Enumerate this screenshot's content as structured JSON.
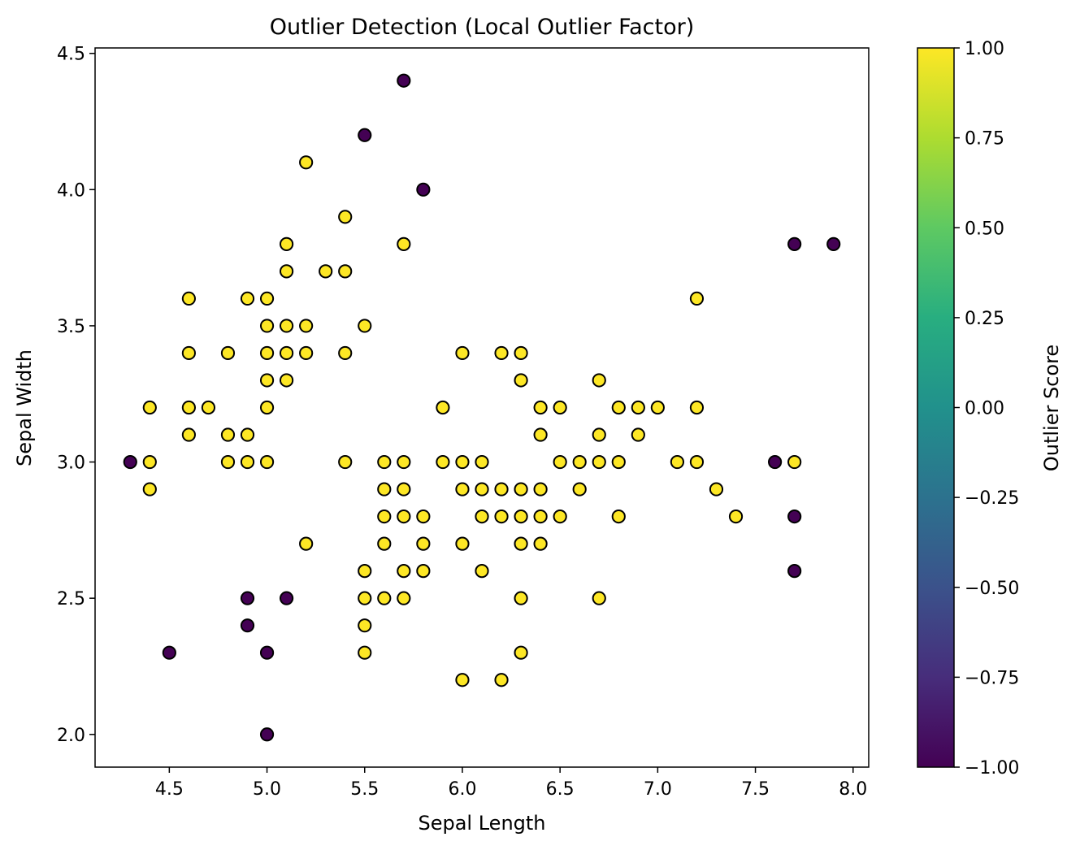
{
  "chart_data": {
    "type": "scatter",
    "title": "Outlier Detection (Local Outlier Factor)",
    "xlabel": "Sepal Length",
    "ylabel": "Sepal Width",
    "xlim": [
      4.12,
      8.08
    ],
    "ylim": [
      1.88,
      4.52
    ],
    "xticks": [
      "4.5",
      "5.0",
      "5.5",
      "6.0",
      "6.5",
      "7.0",
      "7.5",
      "8.0"
    ],
    "yticks": [
      "2.0",
      "2.5",
      "3.0",
      "3.5",
      "4.0",
      "4.5"
    ],
    "grid": false,
    "colorbar": {
      "label": "Outlier Score",
      "range": [
        -1.0,
        1.0
      ],
      "colormap": "viridis",
      "ticks": [
        "−1.00",
        "−0.75",
        "−0.50",
        "−0.25",
        "0.00",
        "0.25",
        "0.50",
        "0.75",
        "1.00"
      ]
    },
    "colors": {
      "outlier": "#440154",
      "inlier": "#fde725",
      "edge": "#000000"
    },
    "series": [
      {
        "score": -1,
        "points": [
          [
            5.7,
            4.4
          ],
          [
            5.5,
            4.2
          ],
          [
            5.8,
            4.0
          ],
          [
            7.7,
            3.8
          ],
          [
            7.9,
            3.8
          ],
          [
            4.3,
            3.0
          ],
          [
            7.6,
            3.0
          ],
          [
            7.7,
            2.8
          ],
          [
            7.7,
            2.6
          ],
          [
            4.9,
            2.5
          ],
          [
            5.1,
            2.5
          ],
          [
            4.9,
            2.4
          ],
          [
            4.5,
            2.3
          ],
          [
            5.0,
            2.3
          ],
          [
            5.0,
            2.0
          ]
        ]
      },
      {
        "score": 1,
        "points": [
          [
            5.2,
            4.1
          ],
          [
            5.4,
            3.9
          ],
          [
            5.1,
            3.8
          ],
          [
            5.7,
            3.8
          ],
          [
            5.1,
            3.7
          ],
          [
            5.3,
            3.7
          ],
          [
            5.4,
            3.7
          ],
          [
            4.6,
            3.6
          ],
          [
            4.9,
            3.6
          ],
          [
            5.0,
            3.6
          ],
          [
            7.2,
            3.6
          ],
          [
            5.0,
            3.5
          ],
          [
            5.1,
            3.5
          ],
          [
            5.2,
            3.5
          ],
          [
            5.5,
            3.5
          ],
          [
            4.6,
            3.4
          ],
          [
            4.8,
            3.4
          ],
          [
            5.0,
            3.4
          ],
          [
            5.1,
            3.4
          ],
          [
            5.2,
            3.4
          ],
          [
            5.4,
            3.4
          ],
          [
            6.0,
            3.4
          ],
          [
            6.2,
            3.4
          ],
          [
            6.3,
            3.4
          ],
          [
            5.0,
            3.3
          ],
          [
            5.1,
            3.3
          ],
          [
            6.3,
            3.3
          ],
          [
            6.7,
            3.3
          ],
          [
            4.4,
            3.2
          ],
          [
            4.6,
            3.2
          ],
          [
            4.7,
            3.2
          ],
          [
            5.0,
            3.2
          ],
          [
            5.9,
            3.2
          ],
          [
            6.4,
            3.2
          ],
          [
            6.5,
            3.2
          ],
          [
            6.8,
            3.2
          ],
          [
            6.9,
            3.2
          ],
          [
            7.0,
            3.2
          ],
          [
            7.2,
            3.2
          ],
          [
            4.6,
            3.1
          ],
          [
            4.8,
            3.1
          ],
          [
            4.9,
            3.1
          ],
          [
            6.4,
            3.1
          ],
          [
            6.7,
            3.1
          ],
          [
            6.9,
            3.1
          ],
          [
            4.4,
            3.0
          ],
          [
            4.8,
            3.0
          ],
          [
            4.9,
            3.0
          ],
          [
            5.0,
            3.0
          ],
          [
            5.4,
            3.0
          ],
          [
            5.6,
            3.0
          ],
          [
            5.7,
            3.0
          ],
          [
            5.9,
            3.0
          ],
          [
            6.0,
            3.0
          ],
          [
            6.1,
            3.0
          ],
          [
            6.5,
            3.0
          ],
          [
            6.6,
            3.0
          ],
          [
            6.7,
            3.0
          ],
          [
            6.8,
            3.0
          ],
          [
            7.1,
            3.0
          ],
          [
            7.2,
            3.0
          ],
          [
            7.7,
            3.0
          ],
          [
            4.4,
            2.9
          ],
          [
            5.6,
            2.9
          ],
          [
            5.7,
            2.9
          ],
          [
            6.0,
            2.9
          ],
          [
            6.1,
            2.9
          ],
          [
            6.2,
            2.9
          ],
          [
            6.3,
            2.9
          ],
          [
            6.4,
            2.9
          ],
          [
            6.6,
            2.9
          ],
          [
            7.3,
            2.9
          ],
          [
            5.6,
            2.8
          ],
          [
            5.7,
            2.8
          ],
          [
            5.8,
            2.8
          ],
          [
            6.1,
            2.8
          ],
          [
            6.2,
            2.8
          ],
          [
            6.3,
            2.8
          ],
          [
            6.4,
            2.8
          ],
          [
            6.5,
            2.8
          ],
          [
            6.8,
            2.8
          ],
          [
            7.4,
            2.8
          ],
          [
            5.2,
            2.7
          ],
          [
            5.6,
            2.7
          ],
          [
            5.8,
            2.7
          ],
          [
            6.0,
            2.7
          ],
          [
            6.3,
            2.7
          ],
          [
            6.4,
            2.7
          ],
          [
            5.5,
            2.6
          ],
          [
            5.7,
            2.6
          ],
          [
            5.8,
            2.6
          ],
          [
            6.1,
            2.6
          ],
          [
            5.5,
            2.5
          ],
          [
            5.6,
            2.5
          ],
          [
            5.7,
            2.5
          ],
          [
            6.3,
            2.5
          ],
          [
            6.7,
            2.5
          ],
          [
            5.5,
            2.4
          ],
          [
            5.5,
            2.3
          ],
          [
            6.3,
            2.3
          ],
          [
            6.0,
            2.2
          ],
          [
            6.2,
            2.2
          ]
        ]
      }
    ]
  }
}
